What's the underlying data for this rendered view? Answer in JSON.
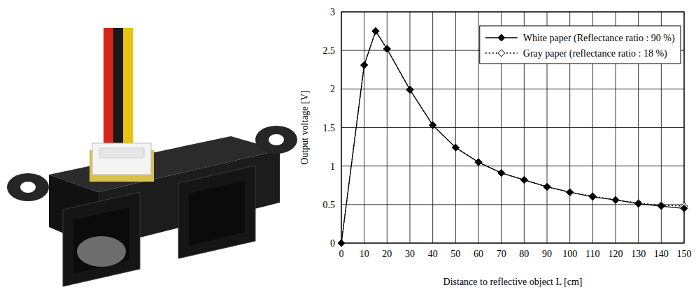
{
  "chart_data": {
    "type": "line",
    "xlabel": "Distance to reflective object L [cm]",
    "ylabel": "Output voltage [V]",
    "x": [
      0,
      10,
      15,
      20,
      30,
      40,
      50,
      60,
      70,
      80,
      90,
      100,
      110,
      120,
      130,
      140,
      150
    ],
    "series": [
      {
        "name": "White paper (Reflectance ratio : 90 %)",
        "color": "#000000",
        "marker": "diamond",
        "line_style": "solid",
        "values": [
          0,
          2.31,
          2.75,
          2.52,
          1.99,
          1.53,
          1.24,
          1.05,
          0.91,
          0.82,
          0.73,
          0.66,
          0.6,
          0.56,
          0.51,
          0.48,
          0.45
        ]
      },
      {
        "name": "Gray paper (reflectance ratio : 18 %)",
        "color": "#000000",
        "marker": "open-diamond",
        "line_style": "dotted",
        "values": [
          0,
          2.31,
          2.75,
          2.52,
          1.99,
          1.53,
          1.24,
          1.05,
          0.91,
          0.82,
          0.73,
          0.66,
          0.61,
          0.56,
          0.52,
          0.49,
          0.48
        ]
      }
    ],
    "xlim": [
      0,
      150
    ],
    "xticks": [
      0,
      10,
      20,
      30,
      40,
      50,
      60,
      70,
      80,
      90,
      100,
      110,
      120,
      130,
      140,
      150
    ],
    "ylim": [
      0,
      3
    ],
    "yticks": [
      0,
      0.5,
      1,
      1.5,
      2,
      2.5,
      3
    ],
    "grid": true,
    "legend": "upper right"
  }
}
